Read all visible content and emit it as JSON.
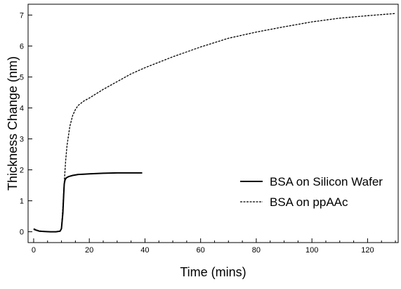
{
  "chart_data": {
    "type": "line",
    "xlabel": "Time (mins)",
    "ylabel": "Thickness Change (nm)",
    "xlim": [
      -2,
      131
    ],
    "ylim": [
      -0.35,
      7.35
    ],
    "xticks": [
      0,
      20,
      40,
      60,
      80,
      100,
      120
    ],
    "yticks": [
      0,
      1,
      2,
      3,
      4,
      5,
      6,
      7
    ],
    "xminor_step": 5,
    "grid": false,
    "legend_position": "right",
    "series": [
      {
        "name": "BSA on Silicon Wafer",
        "line_style": "solid",
        "color": "#000000",
        "x": [
          0,
          1,
          2,
          4,
          6,
          8,
          9.5,
          10,
          10.5,
          10.8,
          11,
          11.3,
          11.7,
          12.5,
          14,
          16,
          18,
          20,
          25,
          30,
          35,
          39
        ],
        "y": [
          0.08,
          0.05,
          0.02,
          0.01,
          0.0,
          0.0,
          0.02,
          0.1,
          0.6,
          1.2,
          1.55,
          1.68,
          1.74,
          1.78,
          1.82,
          1.85,
          1.86,
          1.87,
          1.89,
          1.9,
          1.9,
          1.9
        ]
      },
      {
        "name": "BSA on ppAAc",
        "line_style": "dashed",
        "color": "#000000",
        "x": [
          0,
          1,
          2,
          4,
          6,
          8,
          9.5,
          10,
          10.5,
          11,
          11.5,
          12,
          12.5,
          13,
          14,
          15,
          16,
          18,
          20,
          25,
          30,
          35,
          40,
          50,
          60,
          70,
          80,
          90,
          100,
          110,
          120,
          130
        ],
        "y": [
          0.1,
          0.06,
          0.03,
          0.01,
          0.0,
          0.0,
          0.02,
          0.1,
          0.8,
          1.6,
          2.3,
          2.8,
          3.1,
          3.4,
          3.75,
          3.95,
          4.08,
          4.22,
          4.32,
          4.6,
          4.85,
          5.1,
          5.3,
          5.65,
          5.97,
          6.25,
          6.45,
          6.62,
          6.78,
          6.9,
          6.98,
          7.05
        ]
      }
    ]
  }
}
